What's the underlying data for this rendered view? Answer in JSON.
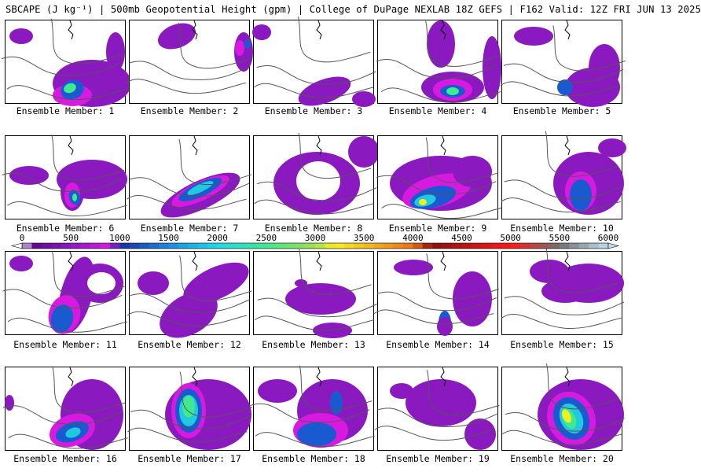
{
  "title": "SBCAPE (J kg⁻¹) | 500mb Geopotential Height (gpm) | College of DuPage NEXLAB 18Z GEFS | F162 Valid: 12Z FRI JUN 13 2025",
  "member_label_prefix": "Ensemble Member: ",
  "members": [
    {
      "id": "1"
    },
    {
      "id": "2"
    },
    {
      "id": "3"
    },
    {
      "id": "4"
    },
    {
      "id": "5"
    },
    {
      "id": "6"
    },
    {
      "id": "7"
    },
    {
      "id": "8"
    },
    {
      "id": "9"
    },
    {
      "id": "10"
    },
    {
      "id": "11"
    },
    {
      "id": "12"
    },
    {
      "id": "13"
    },
    {
      "id": "14"
    },
    {
      "id": "15"
    },
    {
      "id": "16"
    },
    {
      "id": "17"
    },
    {
      "id": "18"
    },
    {
      "id": "19"
    },
    {
      "id": "20"
    }
  ],
  "colorbar": {
    "min": 0,
    "max": 6000,
    "step": 100,
    "tick_labels": [
      "0",
      "500",
      "1000",
      "1500",
      "2000",
      "2500",
      "3000",
      "3500",
      "4000",
      "4500",
      "5000",
      "5500",
      "6000"
    ],
    "color_stops": [
      {
        "v": 0,
        "c": "#ffffff"
      },
      {
        "v": 100,
        "c": "#5a0a8c"
      },
      {
        "v": 500,
        "c": "#8a1ac0"
      },
      {
        "v": 900,
        "c": "#d81ae0"
      },
      {
        "v": 1000,
        "c": "#1a2aa0"
      },
      {
        "v": 1500,
        "c": "#1a8ae0"
      },
      {
        "v": 2000,
        "c": "#20d8e8"
      },
      {
        "v": 2500,
        "c": "#40e890"
      },
      {
        "v": 3000,
        "c": "#a0e050"
      },
      {
        "v": 3200,
        "c": "#f8f020"
      },
      {
        "v": 4000,
        "c": "#e87018"
      },
      {
        "v": 4200,
        "c": "#8a1010"
      },
      {
        "v": 5000,
        "c": "#ff1818"
      },
      {
        "v": 5500,
        "c": "#707070"
      },
      {
        "v": 6000,
        "c": "#c0dcf0"
      }
    ]
  }
}
